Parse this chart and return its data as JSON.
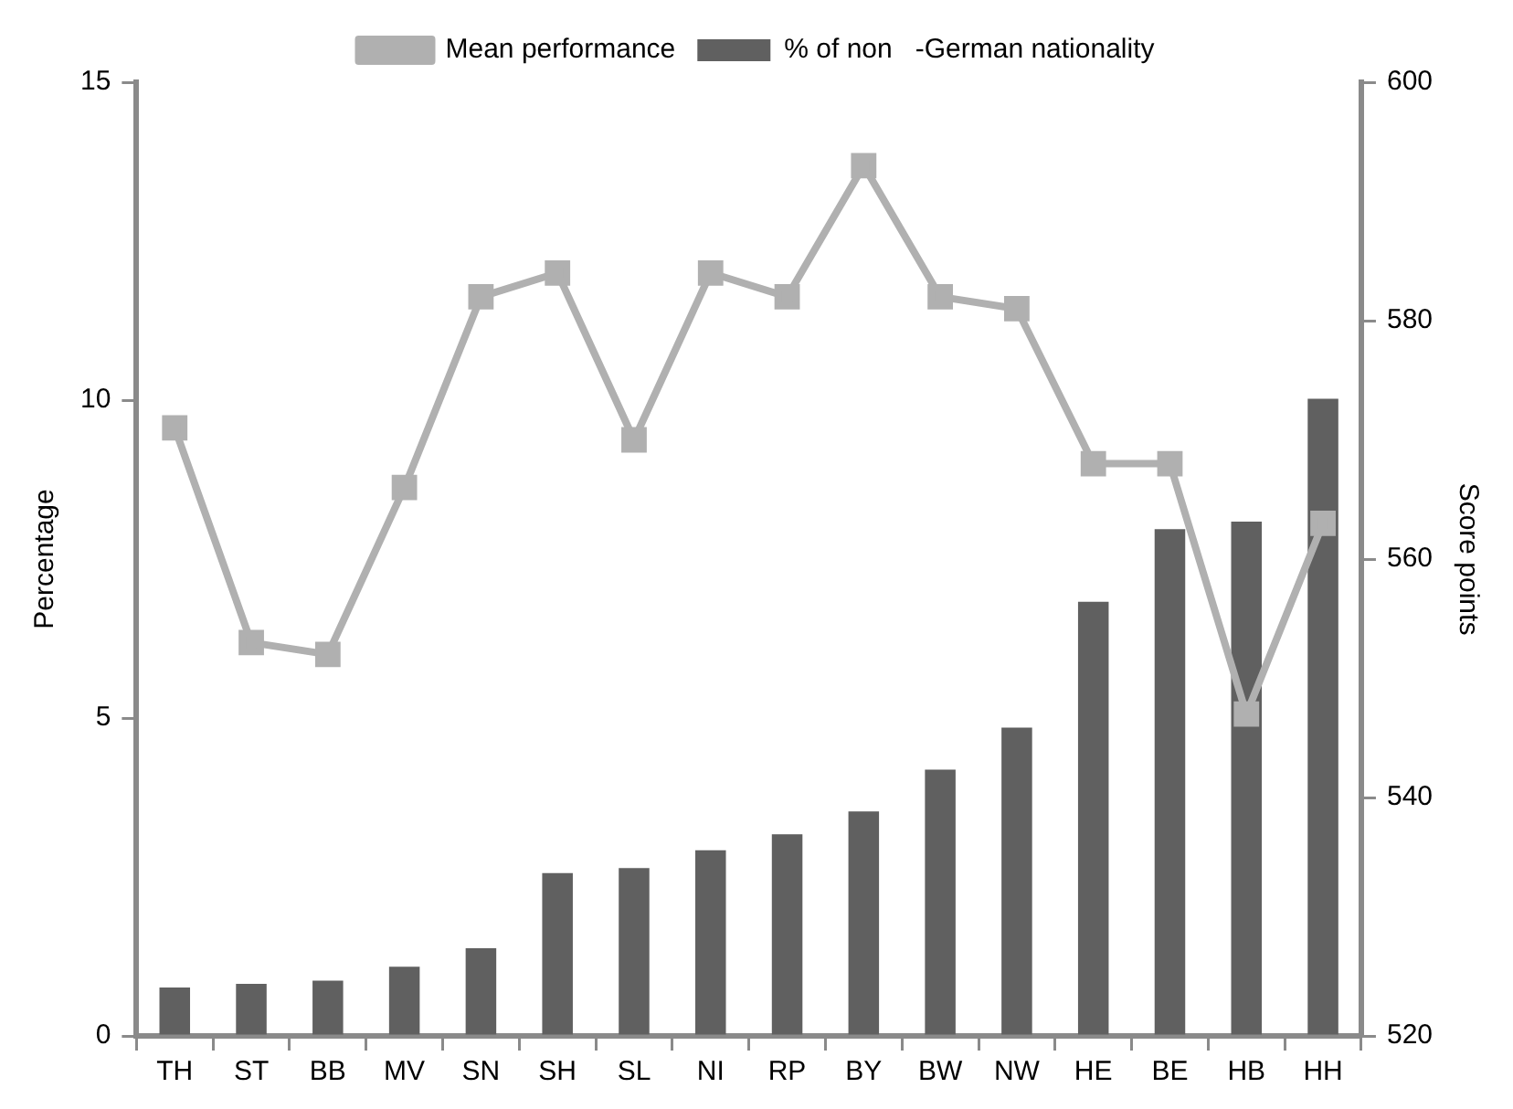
{
  "chart_data": {
    "type": "bar",
    "categories": [
      "TH",
      "ST",
      "BB",
      "MV",
      "SN",
      "SH",
      "SL",
      "NI",
      "RP",
      "BY",
      "BW",
      "NW",
      "HE",
      "BE",
      "HB",
      "HH"
    ],
    "series": [
      {
        "name": "% of non   -German nationality",
        "color": "#606060",
        "values": [
          0.76,
          0.82,
          0.87,
          1.09,
          1.38,
          2.56,
          2.64,
          2.92,
          3.17,
          3.53,
          4.19,
          4.85,
          6.83,
          7.97,
          8.09,
          10.02
        ]
      },
      {
        "name": "Mean performance",
        "type": "line",
        "axis": "y2",
        "color": "#b0b0b0",
        "values": [
          571,
          553,
          552,
          566,
          582,
          584,
          570,
          584,
          582,
          593,
          582,
          581,
          568,
          568,
          547,
          563
        ]
      }
    ],
    "ylabel": "Percentage",
    "y2label": "Score points",
    "ylim": [
      0,
      15
    ],
    "yticks": [
      0,
      5,
      10,
      15
    ],
    "y2lim": [
      520,
      600
    ],
    "y2ticks": [
      520,
      540,
      560,
      580,
      600
    ],
    "legend": "top",
    "marker": "square",
    "line_style": "solid"
  }
}
